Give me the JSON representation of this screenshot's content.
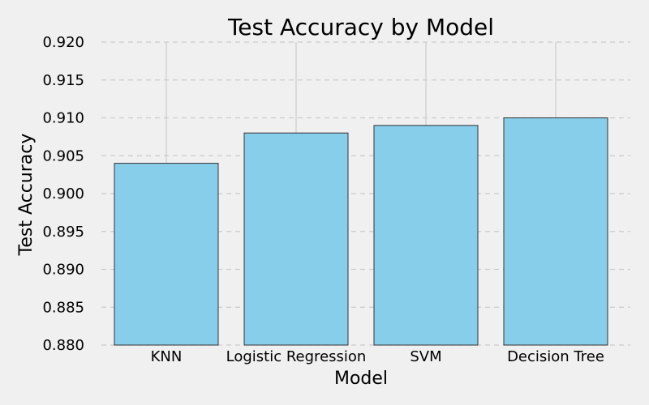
{
  "chart_data": {
    "type": "bar",
    "title": "Test Accuracy by Model",
    "xlabel": "Model",
    "ylabel": "Test Accuracy",
    "categories": [
      "KNN",
      "Logistic Regression",
      "SVM",
      "Decision Tree"
    ],
    "values": [
      0.904,
      0.908,
      0.909,
      0.91
    ],
    "ylim": [
      0.88,
      0.92
    ],
    "yticks": [
      "0.880",
      "0.885",
      "0.890",
      "0.895",
      "0.900",
      "0.905",
      "0.910",
      "0.915",
      "0.920"
    ],
    "grid": true,
    "grid_axis": "y",
    "legend": "none",
    "colors": {
      "background": "#f0f0f0",
      "bar_fill": "#87ceeb",
      "bar_edge": "#333333",
      "grid": "#cbcbcb"
    }
  }
}
